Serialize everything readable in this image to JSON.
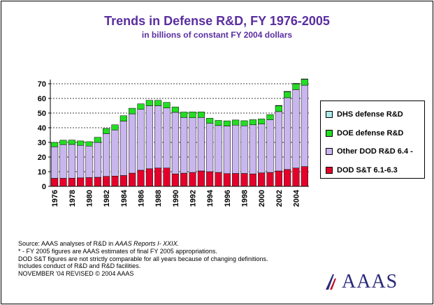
{
  "chart_data": {
    "type": "bar",
    "title": "Trends in Defense R&D, FY 1976-2005",
    "subtitle": "in billions of constant FY 2004 dollars",
    "x": [
      1976,
      1977,
      1978,
      1979,
      1980,
      1981,
      1982,
      1983,
      1984,
      1985,
      1986,
      1987,
      1988,
      1989,
      1990,
      1991,
      1992,
      1993,
      1994,
      1995,
      1996,
      1997,
      1998,
      1999,
      2000,
      2001,
      2002,
      2003,
      2004,
      2005
    ],
    "tick_labels": [
      "1976",
      "1978",
      "1980",
      "1982",
      "1984",
      "1986",
      "1988",
      "1990",
      "1992",
      "1994",
      "1996",
      "1998",
      "2000",
      "2002",
      "2004"
    ],
    "y_ticks": [
      "0",
      "10",
      "20",
      "30",
      "40",
      "50",
      "60",
      "70"
    ],
    "ylim": [
      0,
      70
    ],
    "stacked": true,
    "series": [
      {
        "name": "DOD S&T 6.1-6.3",
        "color": "#e4002b",
        "values": [
          5.5,
          5.5,
          5.6,
          5.8,
          6.0,
          6.2,
          6.8,
          7.0,
          7.4,
          9.0,
          11.0,
          12.0,
          12.5,
          12.5,
          8.5,
          9.0,
          9.5,
          10.5,
          10.0,
          9.5,
          8.7,
          8.8,
          8.8,
          8.5,
          9.2,
          9.5,
          10.5,
          11.5,
          12.5,
          13.5
        ]
      },
      {
        "name": "Other DOD R&D 6.4 -",
        "color": "#c9b6ee",
        "values": [
          21.5,
          23.0,
          23.0,
          22.2,
          21.5,
          23.8,
          29.2,
          31.5,
          37.1,
          40.5,
          41.5,
          43.0,
          42.5,
          41.0,
          42.0,
          38.0,
          37.3,
          36.5,
          33.0,
          32.0,
          32.5,
          33.0,
          32.5,
          33.5,
          33.3,
          36.0,
          40.5,
          49.0,
          53.5,
          55.5
        ]
      },
      {
        "name": "DOE defense R&D",
        "color": "#22dd22",
        "values": [
          3.0,
          3.0,
          3.0,
          3.0,
          3.0,
          3.5,
          3.5,
          3.5,
          3.7,
          3.8,
          3.8,
          3.7,
          3.7,
          3.8,
          3.7,
          3.7,
          4.0,
          3.8,
          3.5,
          3.5,
          3.5,
          3.5,
          3.5,
          3.5,
          3.5,
          3.5,
          4.0,
          4.0,
          4.0,
          4.0
        ]
      },
      {
        "name": "DHS defense R&D",
        "color": "#aee8e8",
        "values": [
          0,
          0,
          0,
          0,
          0,
          0,
          0,
          0,
          0,
          0,
          0,
          0,
          0,
          0,
          0,
          0,
          0,
          0,
          0,
          0,
          0,
          0,
          0,
          0,
          0,
          0,
          0.2,
          0.3,
          0.3,
          0.3
        ]
      }
    ],
    "legend_position": "right",
    "gridlines": "dashed horizontal"
  },
  "legend": [
    {
      "label": "DHS defense R&D",
      "color": "#aee8e8"
    },
    {
      "label": "DOE defense R&D",
      "color": "#22dd22"
    },
    {
      "label": "Other DOD R&D 6.4 -",
      "color": "#c9b6ee"
    },
    {
      "label": "DOD S&T 6.1-6.3",
      "color": "#e4002b"
    }
  ],
  "notes": {
    "source_prefix": "Source: AAAS analyses of R&D in ",
    "source_italic": "AAAS Reports I- XXIX.",
    "fy2005": "* - FY 2005 figures are AAAS estimates of final FY 2005 appropriations.",
    "comparability": "DOD S&T figures are not strictly comparable for all years because of changing definitions. Includes conduct of R&D and R&D facilities.",
    "revised": "NOVEMBER '04 REVISED © 2004 AAAS"
  },
  "logo": {
    "text": "AAAS",
    "color": "#2a2a7a",
    "accent": "#c0102a"
  }
}
